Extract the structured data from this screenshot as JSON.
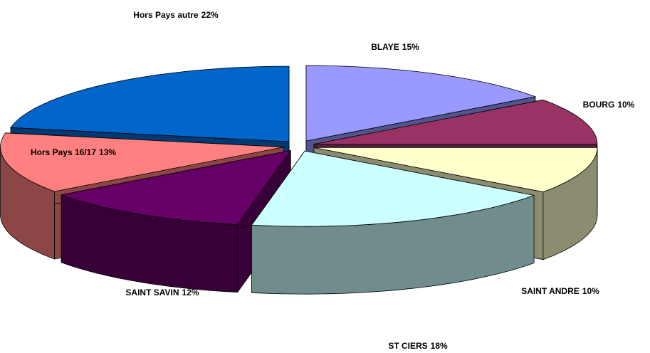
{
  "chart_data": {
    "type": "pie",
    "categories": [
      "BLAYE",
      "BOURG",
      "SAINT ANDRE",
      "ST CIERS",
      "SAINT SAVIN",
      "Hors Pays 16/17",
      "Hors Pays autre"
    ],
    "values": [
      15,
      10,
      10,
      18,
      12,
      13,
      22
    ],
    "value_labels": [
      "15%",
      "10%",
      "10%",
      "18%",
      "12%",
      "13%",
      "22%"
    ],
    "colors": [
      "#9999ff",
      "#993366",
      "#ffffcc",
      "#ccffff",
      "#660066",
      "#ff8080",
      "#0066cc"
    ]
  }
}
